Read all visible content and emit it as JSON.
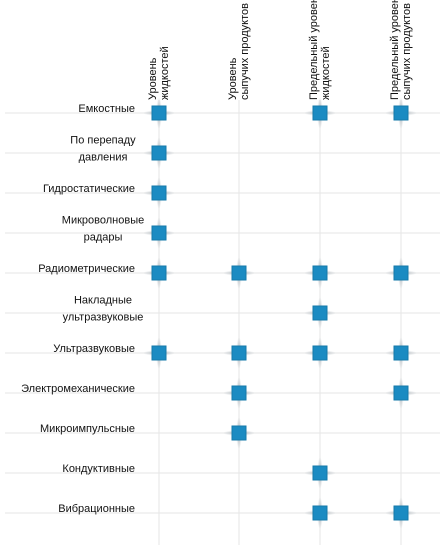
{
  "columns": [
    {
      "label": [
        "Уровень",
        "жидкостей"
      ]
    },
    {
      "label": [
        "Уровень",
        "сыпучих продуктов"
      ]
    },
    {
      "label": [
        "Предельный уровень",
        "жидкостей"
      ]
    },
    {
      "label": [
        "Предельный уровень",
        "сыпучих продуктов"
      ]
    }
  ],
  "rows": [
    {
      "label": [
        "Емкостные"
      ],
      "cells": [
        true,
        false,
        true,
        true
      ]
    },
    {
      "label": [
        "По перепаду",
        "давления"
      ],
      "cells": [
        true,
        false,
        false,
        false
      ]
    },
    {
      "label": [
        "Гидростатические"
      ],
      "cells": [
        true,
        false,
        false,
        false
      ]
    },
    {
      "label": [
        "Микроволновые",
        "радары"
      ],
      "cells": [
        true,
        false,
        false,
        false
      ]
    },
    {
      "label": [
        "Радиометрические"
      ],
      "cells": [
        true,
        true,
        true,
        true
      ]
    },
    {
      "label": [
        "Накладные",
        "ультразвуковые"
      ],
      "cells": [
        false,
        false,
        true,
        false
      ]
    },
    {
      "label": [
        "Ультразвуковые"
      ],
      "cells": [
        true,
        true,
        true,
        true
      ]
    },
    {
      "label": [
        "Электромеханические"
      ],
      "cells": [
        false,
        true,
        false,
        true
      ]
    },
    {
      "label": [
        "Микроимпульсные"
      ],
      "cells": [
        false,
        true,
        false,
        false
      ]
    },
    {
      "label": [
        "Кондуктивные"
      ],
      "cells": [
        false,
        false,
        true,
        false
      ]
    },
    {
      "label": [
        "Вибрационные"
      ],
      "cells": [
        false,
        false,
        true,
        true
      ]
    }
  ]
}
